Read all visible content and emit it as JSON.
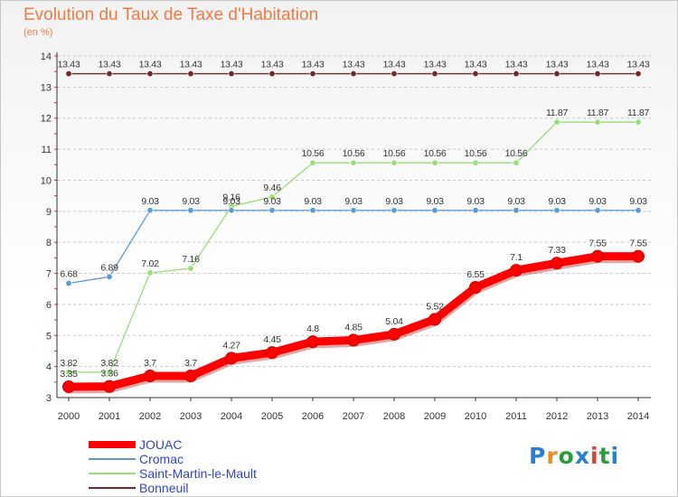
{
  "title": "Evolution du Taux de Taxe d'Habitation",
  "subtitle": "(en %)",
  "logo": {
    "text": "Proxiti",
    "colors": [
      "#2a7fd4",
      "#f08a24",
      "#2a9d3a",
      "#2a7fd4",
      "#e0402a",
      "#2a9d3a",
      "#2a7fd4"
    ]
  },
  "chart_data": {
    "type": "line",
    "x": [
      2000,
      2001,
      2002,
      2003,
      2004,
      2005,
      2006,
      2007,
      2008,
      2009,
      2010,
      2011,
      2012,
      2013,
      2014
    ],
    "ylim": [
      3,
      14
    ],
    "yticks": [
      3,
      4,
      5,
      6,
      7,
      8,
      9,
      10,
      11,
      12,
      13,
      14
    ],
    "grid": "horizontal-dashed",
    "legend_position": "bottom-left",
    "series": [
      {
        "name": "Bonneuil",
        "color": "#6e2a2a",
        "values": [
          13.43,
          13.43,
          13.43,
          13.43,
          13.43,
          13.43,
          13.43,
          13.43,
          13.43,
          13.43,
          13.43,
          13.43,
          13.43,
          13.43,
          13.43
        ],
        "labels": [
          "13.43",
          "13.43",
          "13.43",
          "13.43",
          "13.43",
          "13.43",
          "13.43",
          "13.43",
          "13.43",
          "13.43",
          "13.43",
          "13.43",
          "13.43",
          "13.43",
          "13.43"
        ]
      },
      {
        "name": "Saint-Martin-le-Mault",
        "color": "#99dd77",
        "values": [
          3.82,
          3.82,
          7.02,
          7.16,
          9.16,
          9.46,
          10.56,
          10.56,
          10.56,
          10.56,
          10.56,
          10.56,
          11.87,
          11.87,
          11.87
        ],
        "labels": [
          "3.82",
          "3.82",
          "7.02",
          "7.16",
          "9.16",
          "9.46",
          "10.56",
          "10.56",
          "10.56",
          "10.56",
          "10.56",
          "10.56",
          "11.87",
          "11.87",
          "11.87"
        ]
      },
      {
        "name": "Cromac",
        "color": "#5b9bd1",
        "values": [
          6.68,
          6.89,
          9.03,
          9.03,
          9.03,
          9.03,
          9.03,
          9.03,
          9.03,
          9.03,
          9.03,
          9.03,
          9.03,
          9.03,
          9.03
        ],
        "labels": [
          "6.68",
          "6.89",
          "9.03",
          "9.03",
          "9.03",
          "9.03",
          "9.03",
          "9.03",
          "9.03",
          "9.03",
          "9.03",
          "9.03",
          "9.03",
          "9.03",
          "9.03"
        ]
      },
      {
        "name": "JOUAC",
        "color": "#ff0000",
        "values": [
          3.35,
          3.36,
          3.7,
          3.7,
          4.27,
          4.45,
          4.8,
          4.85,
          5.04,
          5.52,
          6.55,
          7.1,
          7.33,
          7.55,
          7.55
        ],
        "labels": [
          "3.35",
          "3.36",
          "3.7",
          "3.7",
          "4.27",
          "4.45",
          "4.8",
          "4.85",
          "5.04",
          "5.52",
          "6.55",
          "7.1",
          "7.33",
          "7.55",
          "7.55"
        ]
      }
    ],
    "legend": [
      {
        "name": "JOUAC",
        "color": "#ff0000"
      },
      {
        "name": "Cromac",
        "color": "#5b9bd1"
      },
      {
        "name": "Saint-Martin-le-Mault",
        "color": "#99dd77"
      },
      {
        "name": "Bonneuil",
        "color": "#6e2a2a"
      }
    ]
  }
}
